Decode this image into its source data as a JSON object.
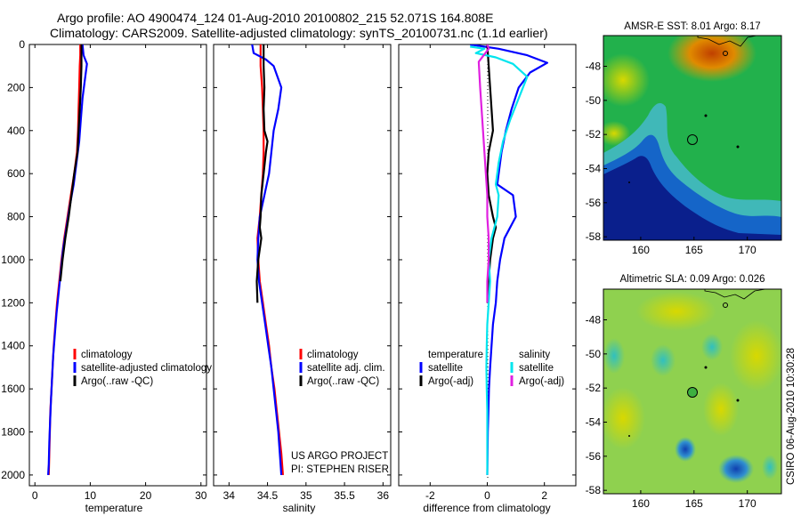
{
  "title": {
    "line1": "Argo profile: AO 4900474_124 01-Aug-2010 20100802_215 52.071S 164.808E",
    "line2": "Climatology: CARS2009. Satellite-adjusted climatology: synTS_20100731.nc (1.1d earlier)"
  },
  "project": {
    "line1": "US ARGO PROJECT",
    "line2": "PI: STEPHEN RISER"
  },
  "credit": "CSIRO 06-Aug-2010 10:30:28",
  "colors": {
    "climatology": "#ff0000",
    "satellite": "#0000ff",
    "argo": "#000000",
    "salinity_satellite": "#00e5ee",
    "salinity_argo": "#e020e0"
  },
  "depth_axis": {
    "ylim": [
      2050,
      0
    ],
    "ticks": [
      "0",
      "200",
      "400",
      "600",
      "800",
      "1000",
      "1200",
      "1400",
      "1600",
      "1800",
      "2000"
    ]
  },
  "chart_data": [
    {
      "type": "line",
      "xlabel": "temperature",
      "xlim": [
        -1,
        31
      ],
      "xticks": [
        "0",
        "10",
        "20",
        "30"
      ],
      "legend": [
        "climatology",
        "satellite-adjusted climatology",
        "Argo(..raw -QC)"
      ],
      "series": [
        {
          "name": "climatology",
          "color": "#ff0000",
          "points": [
            [
              8.2,
              0
            ],
            [
              8.2,
              50
            ],
            [
              8.1,
              100
            ],
            [
              8.0,
              200
            ],
            [
              7.9,
              300
            ],
            [
              7.8,
              400
            ],
            [
              7.6,
              500
            ],
            [
              7.1,
              600
            ],
            [
              6.5,
              700
            ],
            [
              5.9,
              800
            ],
            [
              5.3,
              900
            ],
            [
              4.8,
              1000
            ],
            [
              4.4,
              1100
            ],
            [
              4.0,
              1200
            ],
            [
              3.7,
              1300
            ],
            [
              3.4,
              1400
            ],
            [
              3.2,
              1500
            ],
            [
              3.0,
              1600
            ],
            [
              2.8,
              1700
            ],
            [
              2.7,
              1800
            ],
            [
              2.6,
              1900
            ],
            [
              2.5,
              2000
            ]
          ]
        },
        {
          "name": "satellite-adjusted climatology",
          "color": "#0000ff",
          "points": [
            [
              8.6,
              0
            ],
            [
              8.8,
              50
            ],
            [
              9.4,
              90
            ],
            [
              9.1,
              150
            ],
            [
              8.6,
              250
            ],
            [
              8.3,
              350
            ],
            [
              8.0,
              450
            ],
            [
              7.5,
              550
            ],
            [
              7.0,
              650
            ],
            [
              6.3,
              750
            ],
            [
              5.7,
              850
            ],
            [
              5.1,
              950
            ],
            [
              4.7,
              1050
            ],
            [
              4.3,
              1150
            ],
            [
              3.9,
              1250
            ],
            [
              3.6,
              1350
            ],
            [
              3.3,
              1450
            ],
            [
              3.1,
              1550
            ],
            [
              2.9,
              1650
            ],
            [
              2.75,
              1750
            ],
            [
              2.6,
              1850
            ],
            [
              2.5,
              1950
            ],
            [
              2.4,
              2000
            ]
          ]
        },
        {
          "name": "Argo(..raw -QC)",
          "color": "#000000",
          "points": [
            [
              8.4,
              0
            ],
            [
              8.4,
              100
            ],
            [
              8.3,
              200
            ],
            [
              8.1,
              300
            ],
            [
              7.9,
              400
            ],
            [
              7.7,
              500
            ],
            [
              7.1,
              600
            ],
            [
              6.6,
              700
            ],
            [
              6.1,
              800
            ],
            [
              5.5,
              900
            ],
            [
              5.0,
              1000
            ],
            [
              4.6,
              1100
            ]
          ]
        }
      ]
    },
    {
      "type": "line",
      "xlabel": "salinity",
      "xlim": [
        33.8,
        36.1
      ],
      "xticks": [
        "34",
        "34.5",
        "35",
        "35.5",
        "36"
      ],
      "legend": [
        "climatology",
        "satellite adj. clim.",
        "Argo(..raw -QC)"
      ],
      "series": [
        {
          "name": "climatology",
          "color": "#ff0000",
          "points": [
            [
              34.41,
              0
            ],
            [
              34.41,
              100
            ],
            [
              34.43,
              200
            ],
            [
              34.44,
              300
            ],
            [
              34.45,
              400
            ],
            [
              34.45,
              500
            ],
            [
              34.44,
              600
            ],
            [
              34.42,
              700
            ],
            [
              34.4,
              800
            ],
            [
              34.37,
              900
            ],
            [
              34.38,
              1000
            ],
            [
              34.4,
              1100
            ],
            [
              34.44,
              1200
            ],
            [
              34.48,
              1300
            ],
            [
              34.52,
              1400
            ],
            [
              34.55,
              1500
            ],
            [
              34.59,
              1600
            ],
            [
              34.62,
              1700
            ],
            [
              34.65,
              1800
            ],
            [
              34.68,
              1900
            ],
            [
              34.7,
              2000
            ]
          ]
        },
        {
          "name": "satellite adj. clim.",
          "color": "#0000ff",
          "points": [
            [
              34.3,
              0
            ],
            [
              34.32,
              40
            ],
            [
              34.48,
              70
            ],
            [
              34.58,
              100
            ],
            [
              34.68,
              200
            ],
            [
              34.64,
              300
            ],
            [
              34.58,
              400
            ],
            [
              34.55,
              500
            ],
            [
              34.52,
              600
            ],
            [
              34.46,
              700
            ],
            [
              34.4,
              800
            ],
            [
              34.38,
              900
            ],
            [
              34.37,
              1000
            ],
            [
              34.39,
              1100
            ],
            [
              34.43,
              1200
            ],
            [
              34.47,
              1300
            ],
            [
              34.51,
              1400
            ],
            [
              34.55,
              1500
            ],
            [
              34.58,
              1600
            ],
            [
              34.61,
              1700
            ],
            [
              34.64,
              1800
            ],
            [
              34.66,
              1900
            ],
            [
              34.68,
              2000
            ]
          ]
        },
        {
          "name": "Argo(..raw -QC)",
          "color": "#000000",
          "points": [
            [
              34.45,
              0
            ],
            [
              34.45,
              100
            ],
            [
              34.46,
              200
            ],
            [
              34.45,
              300
            ],
            [
              34.46,
              400
            ],
            [
              34.5,
              450
            ],
            [
              34.48,
              500
            ],
            [
              34.45,
              600
            ],
            [
              34.42,
              700
            ],
            [
              34.41,
              800
            ],
            [
              34.4,
              850
            ],
            [
              34.42,
              900
            ],
            [
              34.38,
              1000
            ],
            [
              34.36,
              1100
            ],
            [
              34.37,
              1200
            ]
          ]
        }
      ]
    },
    {
      "type": "line",
      "xlabel": "difference from climatology",
      "xlim": [
        -3.1,
        3.1
      ],
      "xticks": [
        "-2",
        "0",
        "2"
      ],
      "legend_headers": [
        "temperature",
        "salinity"
      ],
      "legend": [
        "satellite",
        "Argo(-adj)",
        "satellite",
        "Argo(-adj)"
      ],
      "series": [
        {
          "name": "temperature satellite",
          "color": "#0000ff",
          "points": [
            [
              -0.6,
              0
            ],
            [
              0.4,
              20
            ],
            [
              1.4,
              50
            ],
            [
              2.1,
              85
            ],
            [
              1.5,
              130
            ],
            [
              1.1,
              200
            ],
            [
              0.85,
              300
            ],
            [
              0.65,
              400
            ],
            [
              0.5,
              500
            ],
            [
              0.4,
              600
            ],
            [
              0.35,
              650
            ],
            [
              0.9,
              700
            ],
            [
              1.0,
              800
            ],
            [
              0.8,
              850
            ],
            [
              0.6,
              900
            ],
            [
              0.45,
              1000
            ],
            [
              0.35,
              1100
            ],
            [
              0.3,
              1200
            ],
            [
              0.2,
              1300
            ],
            [
              0.15,
              1400
            ],
            [
              0.1,
              1500
            ],
            [
              0.06,
              1600
            ],
            [
              0.04,
              1700
            ],
            [
              0.02,
              1800
            ],
            [
              0.01,
              1900
            ],
            [
              0.0,
              2000
            ]
          ]
        },
        {
          "name": "temperature Argo(-adj)",
          "color": "#000000",
          "points": [
            [
              0.0,
              0
            ],
            [
              0.05,
              100
            ],
            [
              0.1,
              200
            ],
            [
              0.15,
              300
            ],
            [
              0.2,
              400
            ],
            [
              0.05,
              500
            ],
            [
              0.0,
              600
            ],
            [
              0.05,
              700
            ],
            [
              0.2,
              800
            ],
            [
              0.3,
              850
            ],
            [
              0.2,
              900
            ],
            [
              0.1,
              1000
            ],
            [
              0.05,
              1100
            ],
            [
              0.0,
              1200
            ]
          ]
        },
        {
          "name": "salinity satellite",
          "color": "#00e5ee",
          "points": [
            [
              -0.6,
              10
            ],
            [
              -0.1,
              20
            ],
            [
              -0.4,
              40
            ],
            [
              0.3,
              60
            ],
            [
              0.9,
              90
            ],
            [
              1.4,
              150
            ],
            [
              1.1,
              250
            ],
            [
              0.8,
              350
            ],
            [
              0.55,
              450
            ],
            [
              0.4,
              550
            ],
            [
              0.3,
              650
            ],
            [
              0.4,
              700
            ],
            [
              0.35,
              800
            ],
            [
              0.15,
              900
            ],
            [
              0.05,
              1000
            ],
            [
              0.1,
              1100
            ],
            [
              0.05,
              1200
            ],
            [
              0.0,
              1300
            ],
            [
              -0.02,
              1400
            ],
            [
              -0.03,
              1500
            ],
            [
              -0.02,
              1600
            ],
            [
              0.0,
              1700
            ],
            [
              0.0,
              1800
            ],
            [
              0.0,
              1900
            ],
            [
              0.0,
              2000
            ]
          ]
        },
        {
          "name": "salinity Argo(-adj)",
          "color": "#e020e0",
          "points": [
            [
              0.0,
              0
            ],
            [
              0.05,
              20
            ],
            [
              -0.3,
              80
            ],
            [
              -0.25,
              200
            ],
            [
              -0.2,
              300
            ],
            [
              -0.15,
              400
            ],
            [
              -0.1,
              500
            ],
            [
              -0.05,
              600
            ],
            [
              0.0,
              700
            ],
            [
              0.0,
              800
            ],
            [
              0.05,
              900
            ],
            [
              0.05,
              1000
            ],
            [
              0.0,
              1100
            ],
            [
              0.0,
              1200
            ]
          ]
        }
      ]
    }
  ],
  "maps": [
    {
      "title": "AMSR-E SST: 8.01 Argo: 8.17",
      "xticks": [
        "160",
        "165",
        "170"
      ],
      "yticks": [
        "-48",
        "-50",
        "-52",
        "-54",
        "-56",
        "-58"
      ]
    },
    {
      "title": "Altimetric SLA: 0.09 Argo: 0.026",
      "xticks": [
        "160",
        "165",
        "170"
      ],
      "yticks": [
        "-48",
        "-50",
        "-52",
        "-54",
        "-56",
        "-58"
      ]
    }
  ]
}
